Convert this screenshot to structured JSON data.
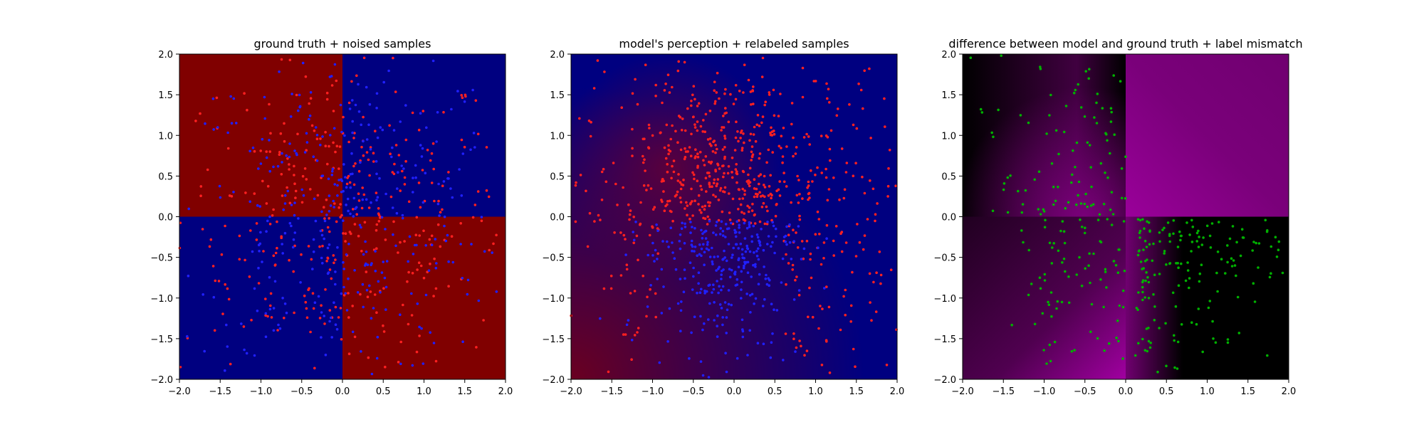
{
  "chart_data": [
    {
      "type": "scatter",
      "title": "ground truth + noised samples",
      "xlim": [
        -2.0,
        2.0
      ],
      "ylim": [
        -2.0,
        2.0
      ],
      "xticks": [
        "−2.0",
        "−1.5",
        "−1.0",
        "−0.5",
        "0.0",
        "0.5",
        "1.0",
        "1.5",
        "2.0"
      ],
      "yticks": [
        "−2.0",
        "−1.5",
        "−1.0",
        "−0.5",
        "0.0",
        "0.5",
        "1.0",
        "1.5",
        "2.0"
      ],
      "background": "XOR checkerboard: red (#800000) where x<0,y>0 and x>0,y<0; blue (#000080) elsewhere",
      "colors": {
        "region_a": "#800000",
        "region_b": "#000080"
      },
      "series": [
        {
          "color": "#ff2020",
          "count": 380,
          "cluster_std": 1.0
        },
        {
          "color": "#2020ff",
          "count": 380,
          "cluster_std": 1.0
        }
      ],
      "grid": false
    },
    {
      "type": "scatter",
      "title": "model's perception + relabeled samples",
      "xlim": [
        -2.0,
        2.0
      ],
      "ylim": [
        -2.0,
        2.0
      ],
      "xticks": [
        "−2.0",
        "−1.5",
        "−1.0",
        "−0.5",
        "0.0",
        "0.5",
        "1.0",
        "1.5",
        "2.0"
      ],
      "yticks": [
        "−2.0",
        "−1.5",
        "−1.0",
        "−0.5",
        "0.0",
        "0.5",
        "1.0",
        "1.5",
        "2.0"
      ],
      "background": "smooth gradient: reddish toward lower-left, blue toward right",
      "colors": {
        "region_a": "#6a0020",
        "region_b": "#000080"
      },
      "series": [
        {
          "color": "#ff2020",
          "count": 700,
          "region": "upper & right (y>0 or x>0.7)"
        },
        {
          "color": "#2020ff",
          "count": 300,
          "region": "lower center"
        }
      ],
      "grid": false
    },
    {
      "type": "scatter",
      "title": "difference between model and ground truth + label mismatch",
      "xlim": [
        -2.0,
        2.0
      ],
      "ylim": [
        -2.0,
        2.0
      ],
      "xticks": [
        "−2.0",
        "−1.5",
        "−1.0",
        "−0.5",
        "0.0",
        "0.5",
        "1.0",
        "1.5",
        "2.0"
      ],
      "yticks": [
        "−2.0",
        "−1.5",
        "−1.0",
        "−0.5",
        "0.0",
        "0.5",
        "1.0",
        "1.5",
        "2.0"
      ],
      "background": "magenta/black difference map; upper-right quadrant magenta, lower-right mostly black",
      "colors": {
        "high": "#800080",
        "low": "#000000"
      },
      "series": [
        {
          "color": "#00b000",
          "count": 380,
          "region": "mismatched labels"
        }
      ],
      "grid": false
    }
  ]
}
